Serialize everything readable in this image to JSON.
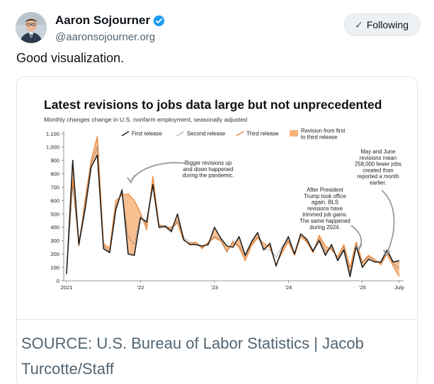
{
  "post": {
    "author": {
      "display_name": "Aaron Sojourner",
      "handle": "@aaronsojourner.org",
      "verified": true
    },
    "follow_label": "Following",
    "text": "Good visualization.",
    "caption": "SOURCE: U.S. Bureau of Labor Statistics | Jacob Turcotte/Staff"
  },
  "colors": {
    "first_release": "#1a1a1a",
    "second_release": "#666666",
    "third_release": "#f08a3c",
    "revision_fill": "#f7b47d",
    "verified": "#1d9bf0"
  },
  "icons": {
    "verified": "verified-badge-icon",
    "following": "check-icon"
  },
  "chart_data": {
    "type": "line",
    "title": "Latest revisions to jobs data large but not unprecedented",
    "subtitle": "Monthly changes change in U.S. nonfarm employment, seasonally adjusted",
    "x_tick_labels": [
      "2021",
      "’22",
      "’23",
      "’24",
      "’25",
      "July"
    ],
    "y_ticks": [
      0,
      100,
      200,
      300,
      400,
      500,
      600,
      700,
      800,
      900,
      "1,000",
      "1,100"
    ],
    "ylim": [
      0,
      1100
    ],
    "months": 55,
    "legend": {
      "first": "First release",
      "second": "Second release",
      "third": "Third release",
      "band": "Revision from first to third release"
    },
    "legend_placement": "top",
    "series": [
      {
        "name": "First release",
        "style": "solid",
        "values": [
          50,
          900,
          270,
          530,
          850,
          940,
          240,
          210,
          530,
          680,
          200,
          190,
          470,
          440,
          720,
          400,
          410,
          370,
          500,
          310,
          270,
          270,
          260,
          270,
          400,
          320,
          260,
          250,
          330,
          190,
          290,
          360,
          230,
          280,
          110,
          240,
          330,
          200,
          350,
          310,
          220,
          300,
          190,
          270,
          150,
          230,
          30,
          260,
          100,
          160,
          140,
          140,
          230,
          140,
          150
        ]
      },
      {
        "name": "Second release",
        "style": "dotted",
        "values": [
          60,
          700,
          300,
          560,
          880,
          1000,
          260,
          220,
          560,
          660,
          330,
          270,
          480,
          420,
          700,
          390,
          400,
          360,
          450,
          330,
          290,
          270,
          250,
          280,
          330,
          310,
          210,
          300,
          260,
          180,
          280,
          330,
          240,
          230,
          180,
          260,
          300,
          210,
          350,
          300,
          230,
          320,
          220,
          250,
          160,
          250,
          60,
          270,
          130,
          180,
          150,
          130,
          220,
          130,
          90
        ]
      },
      {
        "name": "Third release",
        "style": "solid",
        "values": [
          80,
          760,
          260,
          600,
          900,
          1080,
          280,
          240,
          600,
          640,
          650,
          600,
          510,
          380,
          780,
          420,
          400,
          400,
          430,
          300,
          280,
          290,
          240,
          290,
          320,
          300,
          220,
          290,
          250,
          150,
          260,
          320,
          280,
          250,
          120,
          210,
          290,
          190,
          330,
          290,
          210,
          340,
          260,
          230,
          180,
          270,
          100,
          290,
          140,
          190,
          160,
          120,
          200,
          110,
          30
        ]
      }
    ],
    "annotations": [
      "Bigger revisions up and down happened during the pandemic.",
      "After President Trump took office again, BLS revisions have trimmed job gains. The same happened during 2024.",
      "May and June revisions mean 258,000 fewer jobs created than reported a month earlier."
    ]
  }
}
